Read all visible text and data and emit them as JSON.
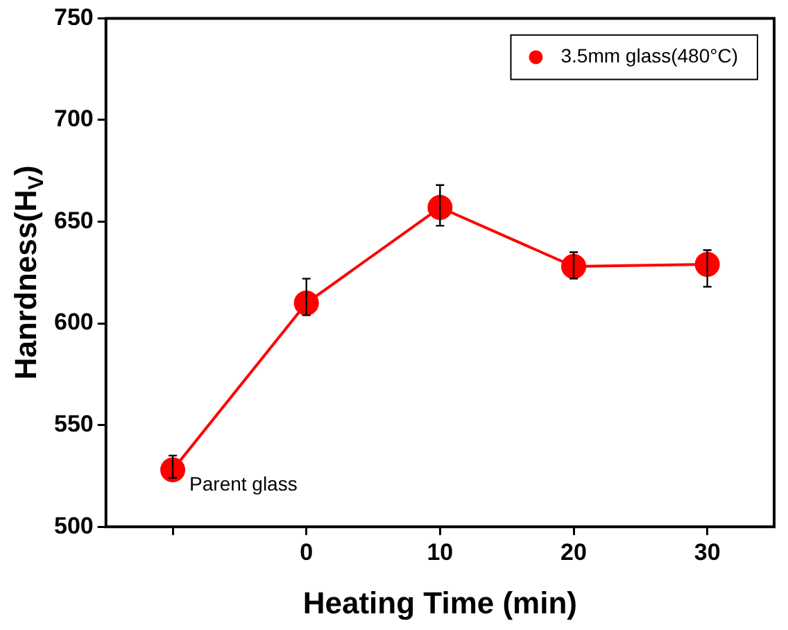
{
  "chart_data": {
    "type": "line",
    "xlabel": "Heating Time (min)",
    "ylabel": "Hanrdness(H$_{V}$)",
    "x": [
      -10,
      0,
      10,
      20,
      30
    ],
    "series": [
      {
        "name": "3.5mm glass(480°C)",
        "color": "#ff0000",
        "values": [
          528,
          610,
          657,
          628,
          629
        ],
        "errors": [
          [
            524,
            535
          ],
          [
            604,
            622
          ],
          [
            648,
            668
          ],
          [
            622,
            635
          ],
          [
            618,
            636
          ]
        ]
      }
    ],
    "xlim": [
      -15,
      35
    ],
    "xticks": [
      {
        "value": -10,
        "label": null
      },
      0,
      10,
      20,
      30
    ],
    "ylim": [
      500,
      750
    ],
    "yticks": [
      500,
      550,
      600,
      650,
      700,
      750
    ],
    "marker": "circle",
    "line_style": "solid",
    "grid": false,
    "legend": "top right",
    "annotations": [
      {
        "text": "Parent glass",
        "x": -10,
        "y": 528
      }
    ]
  }
}
